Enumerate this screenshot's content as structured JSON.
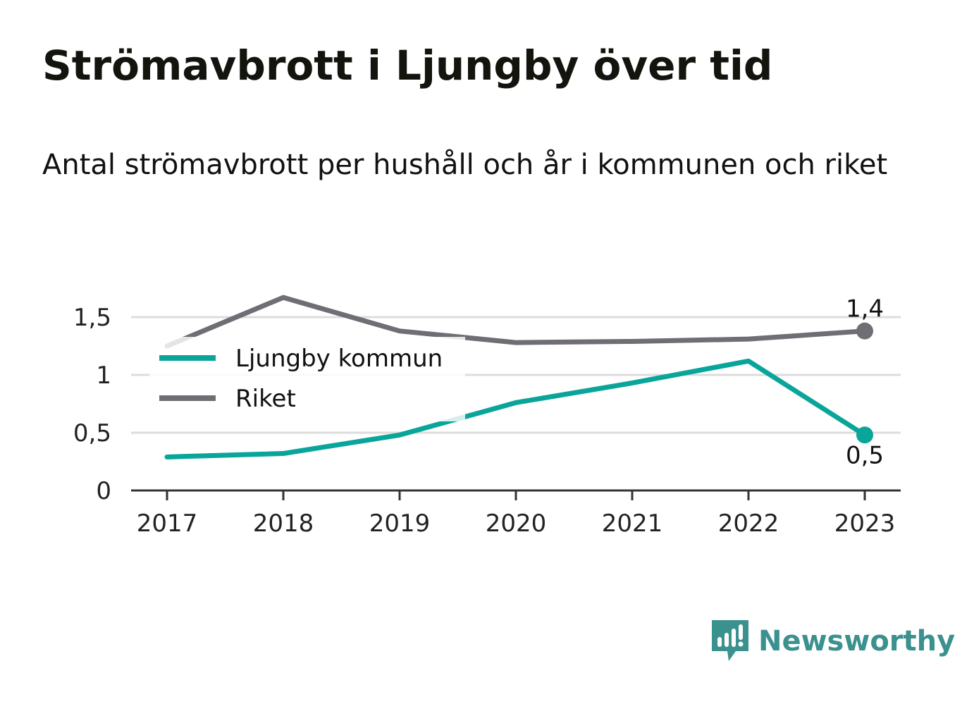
{
  "title": "Strömavbrott i Ljungby över tid",
  "subtitle": "Antal strömavbrott per hushåll och år i kommunen och riket",
  "brand": {
    "name": "Newsworthy",
    "icon": "newsworthy-logo-icon",
    "color": "#3b918e"
  },
  "chart_data": {
    "type": "line",
    "x": [
      "2017",
      "2018",
      "2019",
      "2020",
      "2021",
      "2022",
      "2023"
    ],
    "yticks": [
      0,
      0.5,
      1,
      1.5
    ],
    "ytick_labels": [
      "0",
      "0,5",
      "1",
      "1,5"
    ],
    "ylim": [
      0,
      1.75
    ],
    "grid": true,
    "legend_position": "top-left",
    "series": [
      {
        "name": "Ljungby kommun",
        "color": "#0aa59a",
        "values": [
          0.29,
          0.32,
          0.48,
          0.76,
          0.93,
          1.12,
          0.48
        ],
        "end_label": "0,5"
      },
      {
        "name": "Riket",
        "color": "#6e6e75",
        "values": [
          1.25,
          1.67,
          1.38,
          1.28,
          1.29,
          1.31,
          1.38
        ],
        "end_label": "1,4"
      }
    ]
  }
}
